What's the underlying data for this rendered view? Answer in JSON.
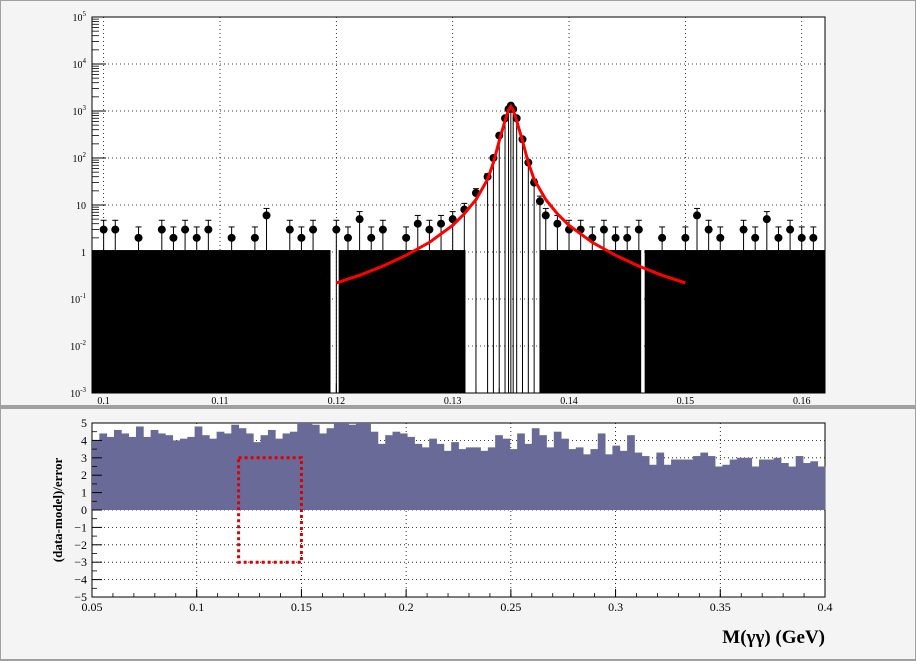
{
  "chart_data": [
    {
      "type": "scatter",
      "panel": "top",
      "title": "",
      "xlabel": "",
      "ylabel": "",
      "xlim": [
        0.099,
        0.162
      ],
      "ylim": [
        0.001,
        100000
      ],
      "yscale": "log",
      "grid": true,
      "xticks": [
        "0.1",
        "0.11",
        "0.12",
        "0.13",
        "0.14",
        "0.15",
        "0.16"
      ],
      "yticks": [
        {
          "base": "10",
          "exp": "-3"
        },
        {
          "base": "10",
          "exp": "-2"
        },
        {
          "base": "10",
          "exp": "-1"
        },
        {
          "base": "1",
          "exp": ""
        },
        {
          "base": "10",
          "exp": ""
        },
        {
          "base": "10",
          "exp": "2"
        },
        {
          "base": "10",
          "exp": "3"
        },
        {
          "base": "10",
          "exp": "4"
        },
        {
          "base": "10",
          "exp": "5"
        }
      ],
      "series": [
        {
          "kind": "data-points",
          "color": "#000000",
          "x": [
            0.1,
            0.101,
            0.103,
            0.105,
            0.106,
            0.107,
            0.108,
            0.109,
            0.111,
            0.113,
            0.114,
            0.116,
            0.117,
            0.118,
            0.12,
            0.121,
            0.122,
            0.123,
            0.124,
            0.126,
            0.127,
            0.128,
            0.129,
            0.13,
            0.131,
            0.132,
            0.133,
            0.1335,
            0.134,
            0.1345,
            0.1348,
            0.135,
            0.1352,
            0.1355,
            0.136,
            0.1365,
            0.137,
            0.1375,
            0.138,
            0.139,
            0.14,
            0.141,
            0.142,
            0.143,
            0.144,
            0.145,
            0.146,
            0.148,
            0.15,
            0.151,
            0.152,
            0.153,
            0.155,
            0.156,
            0.157,
            0.158,
            0.159,
            0.16,
            0.161
          ],
          "y": [
            3,
            3,
            2,
            3,
            2,
            3,
            2,
            3,
            2,
            2,
            6,
            3,
            2,
            3,
            3,
            2,
            5,
            2,
            3,
            2,
            4,
            3,
            4,
            5,
            8,
            18,
            40,
            100,
            300,
            700,
            1100,
            1300,
            1100,
            700,
            250,
            80,
            30,
            12,
            6,
            4,
            3,
            3,
            2,
            3,
            2,
            2,
            3,
            2,
            2,
            6,
            3,
            2,
            3,
            2,
            5,
            2,
            3,
            2,
            2
          ]
        },
        {
          "kind": "fit-curve",
          "color": "#ff0000",
          "x": [
            0.12,
            0.122,
            0.124,
            0.126,
            0.128,
            0.13,
            0.131,
            0.132,
            0.133,
            0.1335,
            0.134,
            0.1345,
            0.1348,
            0.135,
            0.1352,
            0.1355,
            0.136,
            0.1365,
            0.137,
            0.138,
            0.139,
            0.14,
            0.142,
            0.144,
            0.146,
            0.148,
            0.15
          ],
          "y": [
            0.22,
            0.32,
            0.5,
            0.85,
            1.6,
            3.7,
            6.5,
            13,
            35,
            80,
            230,
            620,
            1050,
            1250,
            1050,
            620,
            230,
            80,
            35,
            13,
            6.5,
            3.7,
            1.6,
            0.85,
            0.5,
            0.32,
            0.22
          ]
        }
      ]
    },
    {
      "type": "bar",
      "panel": "bottom",
      "title": "",
      "xlabel": "M(γγ) (GeV)",
      "ylabel": "(data-model)/error",
      "xlim": [
        0.05,
        0.4
      ],
      "ylim": [
        -5,
        5
      ],
      "grid": true,
      "xticks": [
        "0.05",
        "0.1",
        "0.15",
        "0.2",
        "0.25",
        "0.3",
        "0.35",
        "0.4"
      ],
      "yticks": [
        "−5",
        "−4",
        "−3",
        "−2",
        "−1",
        "0",
        "1",
        "2",
        "3",
        "4",
        "5"
      ],
      "bar_color": "#6a6a98",
      "bin_width": 0.0035,
      "values": [
        4,
        4.4,
        4.2,
        4.6,
        4.4,
        4.2,
        4.8,
        4.2,
        4.6,
        4.4,
        4.3,
        4,
        4.1,
        4.2,
        4.8,
        4.3,
        4.1,
        4.5,
        4.4,
        4.9,
        4.7,
        4.4,
        3.9,
        4.3,
        4.6,
        4.1,
        4.4,
        4.5,
        5,
        5,
        4.9,
        4.4,
        4.7,
        5,
        5,
        4.9,
        5,
        5,
        4.5,
        3.8,
        4.3,
        4.5,
        4.4,
        4.2,
        3.8,
        3.6,
        4.1,
        3.8,
        3.4,
        3.9,
        3.5,
        3.6,
        3.6,
        3.4,
        3.6,
        4.3,
        4.1,
        3.5,
        4.4,
        3.8,
        4.7,
        4.3,
        3.6,
        4.5,
        4.1,
        3.5,
        3.6,
        3.2,
        3.5,
        4.4,
        3.2,
        3.7,
        3.4,
        4.3,
        3.3,
        3.1,
        2.6,
        3.3,
        2.6,
        2.9,
        2.9,
        2.9,
        3.1,
        3.3,
        3.1,
        2.5,
        2.6,
        2.9,
        3,
        3,
        2.5,
        2.9,
        2.9,
        3,
        2.7,
        2.5,
        3.1,
        2.7,
        2.8,
        2.5,
        2.3,
        2.3,
        2.2,
        2,
        2,
        2,
        2,
        2,
        1.9,
        1.7,
        1.7,
        1.9,
        1.7,
        2.1,
        2,
        2.6,
        2.5,
        2.4,
        2.9,
        2.8,
        2.9,
        3.5,
        3.6,
        3.6,
        3.9,
        3.2,
        1.7,
        1.5,
        2.9,
        1.7,
        2.2,
        2.1,
        1.7,
        1.9,
        2.4,
        2.1,
        1.7,
        1.8,
        2.3,
        2.4,
        2.6,
        2.5,
        2.4,
        1.8,
        2.5,
        1.9,
        2.2,
        2.2,
        2.1,
        1.9,
        1.7,
        1.2,
        2.3,
        2,
        2.2,
        1.8,
        1.6,
        1.3,
        1.3,
        1.2,
        1.1,
        1.1,
        1.1,
        1.1,
        1.1,
        1.1,
        1.1,
        1.1,
        1.1,
        1.1,
        1.1,
        1.1,
        1.1,
        1.1,
        1.1,
        1.1,
        1.1,
        1.1,
        1.1,
        1.1,
        1.1,
        1.1,
        1.1,
        1.1,
        1.1,
        1.1,
        1.1,
        1.1,
        1.1,
        1.1,
        1.1,
        1.1,
        1.1,
        1.1,
        1.1,
        1.1,
        1.1,
        1.1,
        1.1,
        1.1,
        1.1,
        1.1,
        1.1,
        1.1
      ],
      "highlight_box": {
        "x": [
          0.12,
          0.15
        ],
        "y": [
          -3,
          3
        ],
        "color": "#dd0000"
      }
    }
  ]
}
